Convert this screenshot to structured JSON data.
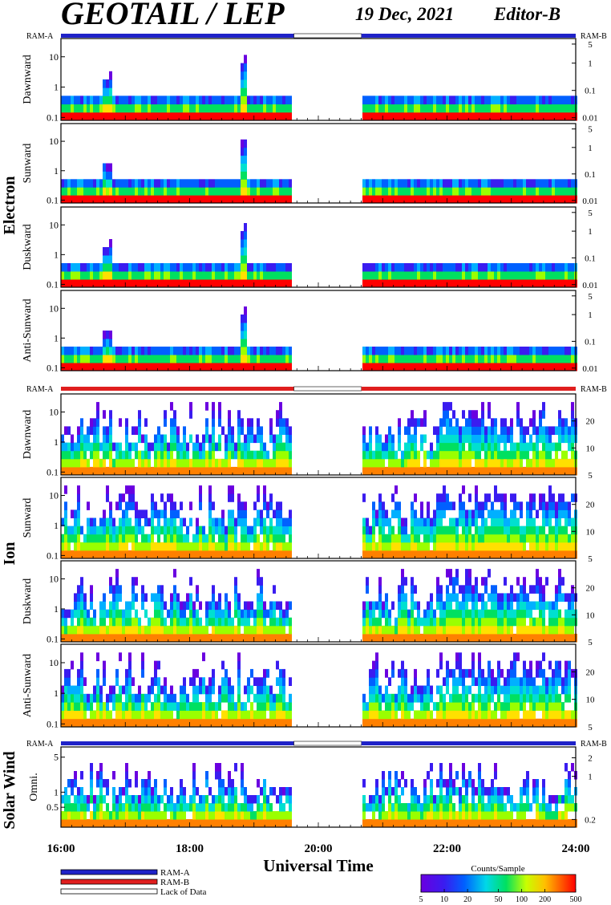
{
  "header": {
    "title": "GEOTAIL / LEP",
    "date": "19 Dec, 2021",
    "editor": "Editor-B"
  },
  "legend": {
    "items": [
      {
        "label": "RAM-A",
        "color": "#1f22c8"
      },
      {
        "label": "RAM-B",
        "color": "#e01e1e"
      },
      {
        "label": "Lack of Data",
        "color": "#ffffff"
      }
    ]
  },
  "colorbar": {
    "title": "Counts/Sample",
    "ticks": [
      "5",
      "10",
      "20",
      "50",
      "100",
      "200",
      "500"
    ]
  },
  "xaxis": {
    "label": "Universal Time",
    "ticks": [
      "16:00",
      "18:00",
      "20:00",
      "22:00",
      "24:00"
    ],
    "range_hours": [
      16,
      24
    ]
  },
  "data_gap_hours": [
    19.62,
    20.67
  ],
  "groups": [
    {
      "name": "Electron",
      "ram_left": "RAM-A",
      "ram_right": "RAM-B",
      "ram_mode": "RAM-A"
    },
    {
      "name": "Ion",
      "ram_left": "RAM-A",
      "ram_right": "RAM-B",
      "ram_mode": "RAM-B"
    },
    {
      "name": "Solar Wind",
      "ram_left": "RAM-A",
      "ram_right": "RAM-B",
      "ram_mode": "RAM-A"
    }
  ],
  "chart_data": [
    {
      "type": "heatmap",
      "group": "Electron",
      "panel": "Dawnward",
      "y_left_ticks": [
        "10",
        "1",
        "0.1"
      ],
      "y_left_range": [
        0.08,
        40
      ],
      "y_left_scale": "log",
      "y_right_ticks": [
        "5",
        "1",
        "0.1",
        "0.01"
      ],
      "y_right_range": [
        0.008,
        8
      ],
      "y_right_scale": "log",
      "colorbar": "Counts/Sample"
    },
    {
      "type": "heatmap",
      "group": "Electron",
      "panel": "Sunward",
      "y_left_ticks": [
        "10",
        "1",
        "0.1"
      ],
      "y_left_range": [
        0.08,
        40
      ],
      "y_left_scale": "log",
      "y_right_ticks": [
        "5",
        "1",
        "0.1",
        "0.01"
      ],
      "y_right_range": [
        0.008,
        8
      ],
      "y_right_scale": "log"
    },
    {
      "type": "heatmap",
      "group": "Electron",
      "panel": "Duskward",
      "y_left_ticks": [
        "10",
        "1",
        "0.1"
      ],
      "y_left_range": [
        0.08,
        40
      ],
      "y_left_scale": "log",
      "y_right_ticks": [
        "5",
        "1",
        "0.1",
        "0.01"
      ],
      "y_right_range": [
        0.008,
        8
      ],
      "y_right_scale": "log"
    },
    {
      "type": "heatmap",
      "group": "Electron",
      "panel": "Anti-Sunward",
      "y_left_ticks": [
        "10",
        "1",
        "0.1"
      ],
      "y_left_range": [
        0.08,
        40
      ],
      "y_left_scale": "log",
      "y_right_ticks": [
        "5",
        "1",
        "0.1",
        "0.01"
      ],
      "y_right_range": [
        0.008,
        8
      ],
      "y_right_scale": "log"
    },
    {
      "type": "heatmap",
      "group": "Ion",
      "panel": "Dawnward",
      "y_left_ticks": [
        "10",
        "1",
        "0.1"
      ],
      "y_left_range": [
        0.08,
        40
      ],
      "y_left_scale": "log",
      "y_right_ticks": [
        "20",
        "10",
        "5"
      ],
      "y_right_range": [
        5,
        40
      ],
      "y_right_scale": "log"
    },
    {
      "type": "heatmap",
      "group": "Ion",
      "panel": "Sunward",
      "y_left_ticks": [
        "10",
        "1",
        "0.1"
      ],
      "y_left_range": [
        0.08,
        40
      ],
      "y_left_scale": "log",
      "y_right_ticks": [
        "20",
        "10",
        "5"
      ],
      "y_right_range": [
        5,
        40
      ],
      "y_right_scale": "log"
    },
    {
      "type": "heatmap",
      "group": "Ion",
      "panel": "Duskward",
      "y_left_ticks": [
        "10",
        "1",
        "0.1"
      ],
      "y_left_range": [
        0.08,
        40
      ],
      "y_left_scale": "log",
      "y_right_ticks": [
        "20",
        "10",
        "5"
      ],
      "y_right_range": [
        5,
        40
      ],
      "y_right_scale": "log"
    },
    {
      "type": "heatmap",
      "group": "Ion",
      "panel": "Anti-Sunward",
      "y_left_ticks": [
        "10",
        "1",
        "0.1"
      ],
      "y_left_range": [
        0.08,
        40
      ],
      "y_left_scale": "log",
      "y_right_ticks": [
        "20",
        "10",
        "5"
      ],
      "y_right_range": [
        5,
        40
      ],
      "y_right_scale": "log"
    },
    {
      "type": "heatmap",
      "group": "Solar Wind",
      "panel": "Omni.",
      "y_left_ticks": [
        "5",
        "1",
        "0.5"
      ],
      "y_left_range": [
        0.2,
        8
      ],
      "y_left_scale": "log",
      "y_right_ticks": [
        "2",
        "1",
        "0.2"
      ],
      "y_right_range": [
        0.15,
        3
      ],
      "y_right_scale": "log"
    }
  ]
}
